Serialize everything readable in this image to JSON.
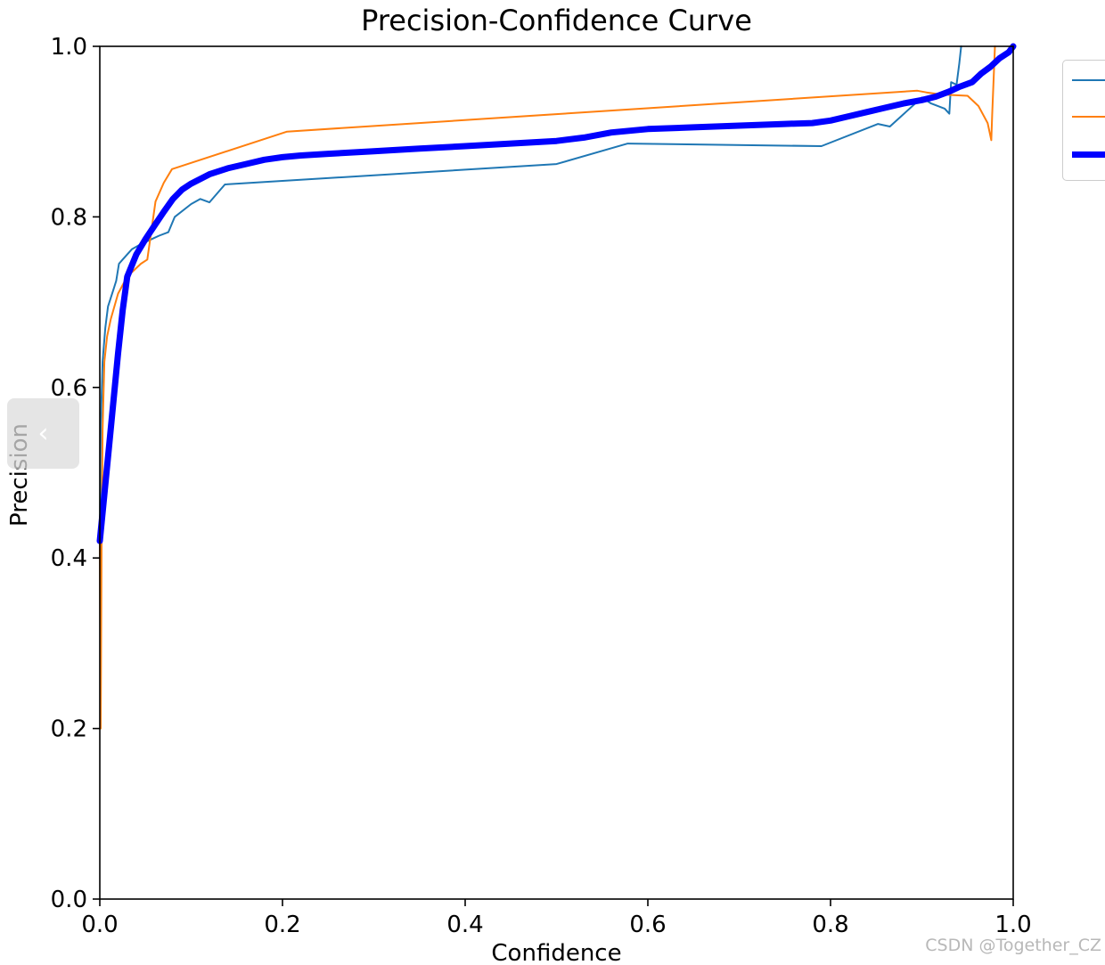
{
  "chart_data": {
    "type": "line",
    "title": "Precision-Confidence Curve",
    "xlabel": "Confidence",
    "ylabel": "Precision",
    "xlim": [
      0.0,
      1.0
    ],
    "ylim": [
      0.0,
      1.0
    ],
    "xticks": [
      "0.0",
      "0.2",
      "0.4",
      "0.6",
      "0.8",
      "1.0"
    ],
    "yticks": [
      "0.0",
      "0.2",
      "0.4",
      "0.6",
      "0.8",
      "1.0"
    ],
    "grid": false,
    "legend_position": "upper right, outside plot",
    "series": [
      {
        "color": "#1f77b4",
        "width": 2,
        "x": [
          0.0,
          0.001,
          0.003,
          0.006,
          0.009,
          0.012,
          0.015,
          0.018,
          0.021,
          0.025,
          0.035,
          0.045,
          0.055,
          0.065,
          0.075,
          0.082,
          0.1,
          0.11,
          0.12,
          0.137,
          0.5,
          0.578,
          0.79,
          0.852,
          0.865,
          0.9,
          0.91,
          0.925,
          0.93,
          0.932,
          0.938,
          0.941,
          0.943
        ],
        "y": [
          0.42,
          0.55,
          0.63,
          0.67,
          0.695,
          0.705,
          0.715,
          0.725,
          0.745,
          0.75,
          0.762,
          0.768,
          0.773,
          0.778,
          0.782,
          0.8,
          0.815,
          0.821,
          0.817,
          0.838,
          0.862,
          0.886,
          0.883,
          0.909,
          0.906,
          0.94,
          0.933,
          0.927,
          0.921,
          0.958,
          0.955,
          0.98,
          1.0
        ]
      },
      {
        "color": "#ff7f0e",
        "width": 2,
        "x": [
          0.0,
          0.001,
          0.002,
          0.003,
          0.005,
          0.008,
          0.012,
          0.02,
          0.03,
          0.045,
          0.052,
          0.061,
          0.07,
          0.079,
          0.205,
          0.895,
          0.905,
          0.918,
          0.93,
          0.95,
          0.962,
          0.972,
          0.976,
          0.977,
          0.98
        ],
        "y": [
          0.42,
          0.2,
          0.42,
          0.55,
          0.63,
          0.66,
          0.68,
          0.71,
          0.73,
          0.745,
          0.75,
          0.818,
          0.84,
          0.856,
          0.9,
          0.948,
          0.946,
          0.944,
          0.943,
          0.942,
          0.93,
          0.91,
          0.89,
          0.92,
          1.0
        ]
      },
      {
        "color": "#0000ff",
        "width": 7,
        "x": [
          0.0,
          0.01,
          0.02,
          0.025,
          0.03,
          0.04,
          0.05,
          0.06,
          0.07,
          0.08,
          0.09,
          0.1,
          0.12,
          0.14,
          0.16,
          0.18,
          0.2,
          0.22,
          0.25,
          0.3,
          0.35,
          0.4,
          0.45,
          0.5,
          0.53,
          0.56,
          0.6,
          0.65,
          0.7,
          0.75,
          0.78,
          0.8,
          0.82,
          0.84,
          0.86,
          0.88,
          0.9,
          0.915,
          0.93,
          0.94,
          0.955,
          0.965,
          0.975,
          0.985,
          0.995,
          1.0
        ],
        "y": [
          0.42,
          0.53,
          0.64,
          0.69,
          0.73,
          0.756,
          0.774,
          0.79,
          0.806,
          0.821,
          0.832,
          0.839,
          0.85,
          0.857,
          0.862,
          0.867,
          0.87,
          0.872,
          0.874,
          0.877,
          0.88,
          0.883,
          0.886,
          0.889,
          0.893,
          0.899,
          0.903,
          0.905,
          0.907,
          0.909,
          0.91,
          0.913,
          0.918,
          0.923,
          0.928,
          0.933,
          0.937,
          0.941,
          0.947,
          0.952,
          0.958,
          0.968,
          0.976,
          0.986,
          0.993,
          1.0
        ]
      }
    ]
  },
  "ui": {
    "nav_arrow": "‹",
    "watermark": "CSDN @Together_CZ"
  }
}
